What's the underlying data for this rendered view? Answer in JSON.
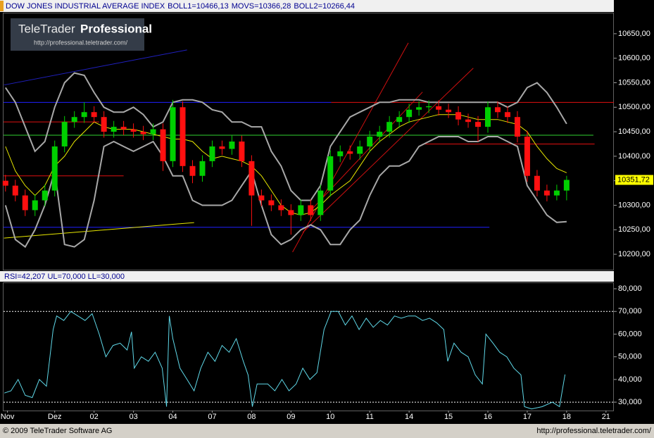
{
  "logo": {
    "brand": "TeleTrader",
    "product": "Professional",
    "url": "http://professional.teletrader.com/"
  },
  "footer": {
    "copyright": "© 2009 TeleTrader Software AG",
    "url": "http://professional.teletrader.com/"
  },
  "chart_data": [
    {
      "type": "candlestick",
      "title": "DOW JONES INDUSTRIAL AVERAGE INDEX",
      "indicator_labels": [
        "BOLL1=10466,13",
        "MOVS=10366,28",
        "BOLL2=10266,44"
      ],
      "last_price_label": "10351,72",
      "up_color": "#00d000",
      "down_color": "#ff1010",
      "xlim": [
        -0.3,
        15.2
      ],
      "ylim": [
        10168.5,
        10691.5
      ],
      "yticks": [
        {
          "value": 10200,
          "label": "10200,00"
        },
        {
          "value": 10250,
          "label": "10250,00"
        },
        {
          "value": 10300,
          "label": "10300,00"
        },
        {
          "value": 10350,
          "label": "10350,00"
        },
        {
          "value": 10400,
          "label": "10400,00"
        },
        {
          "value": 10450,
          "label": "10450,00"
        },
        {
          "value": 10500,
          "label": "10500,00"
        },
        {
          "value": 10550,
          "label": "10550,00"
        },
        {
          "value": 10600,
          "label": "10600,00"
        },
        {
          "value": 10650,
          "label": "10650,00"
        }
      ],
      "x": [
        -0.25,
        0,
        0.25,
        0.5,
        0.75,
        1,
        1.25,
        1.5,
        1.75,
        2,
        2.25,
        2.5,
        2.75,
        3,
        3.25,
        3.5,
        3.75,
        4,
        4.25,
        4.5,
        4.75,
        5,
        5.25,
        5.5,
        5.75,
        6,
        6.25,
        6.5,
        6.75,
        7,
        7.25,
        7.5,
        7.75,
        8,
        8.25,
        8.5,
        8.75,
        9,
        9.25,
        9.5,
        9.75,
        10,
        10.25,
        10.5,
        10.75,
        11,
        11.25,
        11.5,
        11.75,
        12,
        12.25,
        12.5,
        12.75,
        13,
        13.25,
        13.5,
        13.75,
        14
      ],
      "open": [
        10350,
        10340,
        10320,
        10290,
        10310,
        10330,
        10420,
        10470,
        10480,
        10490,
        10480,
        10450,
        10460,
        10455,
        10450,
        10445,
        10455,
        10390,
        10500,
        10380,
        10360,
        10390,
        10420,
        10415,
        10430,
        10390,
        10320,
        10310,
        10300,
        10290,
        10280,
        10300,
        10280,
        10330,
        10400,
        10410,
        10405,
        10420,
        10440,
        10450,
        10470,
        10480,
        10495,
        10500,
        10502,
        10495,
        10490,
        10475,
        10470,
        10460,
        10500,
        10490,
        10480,
        10440,
        10360,
        10330,
        10320,
        10330
      ],
      "high": [
        10362,
        10352,
        10332,
        10322,
        10342,
        10432,
        10482,
        10492,
        10510,
        10502,
        10492,
        10472,
        10472,
        10467,
        10462,
        10467,
        10467,
        10515,
        10512,
        10392,
        10402,
        10432,
        10432,
        10442,
        10442,
        10402,
        10332,
        10322,
        10312,
        10302,
        10312,
        10312,
        10342,
        10412,
        10422,
        10422,
        10432,
        10452,
        10462,
        10482,
        10492,
        10507,
        10512,
        10514,
        10514,
        10507,
        10502,
        10487,
        10482,
        10512,
        10512,
        10502,
        10492,
        10452,
        10372,
        10342,
        10342,
        10360
      ],
      "low": [
        10328,
        10308,
        10278,
        10278,
        10298,
        10318,
        10408,
        10458,
        10468,
        10468,
        10438,
        10438,
        10443,
        10438,
        10433,
        10433,
        10370,
        10378,
        10368,
        10345,
        10348,
        10378,
        10403,
        10403,
        10378,
        10258,
        10298,
        10288,
        10278,
        10240,
        10268,
        10268,
        10268,
        10318,
        10388,
        10393,
        10393,
        10408,
        10428,
        10438,
        10458,
        10468,
        10483,
        10488,
        10483,
        10478,
        10463,
        10458,
        10430,
        10448,
        10478,
        10468,
        10428,
        10348,
        10318,
        10308,
        10310,
        10310
      ],
      "close": [
        10340,
        10320,
        10290,
        10310,
        10330,
        10420,
        10470,
        10480,
        10490,
        10480,
        10450,
        10460,
        10455,
        10450,
        10445,
        10455,
        10390,
        10500,
        10380,
        10360,
        10390,
        10420,
        10415,
        10430,
        10390,
        10320,
        10310,
        10300,
        10290,
        10280,
        10300,
        10280,
        10330,
        10400,
        10410,
        10405,
        10420,
        10440,
        10450,
        10470,
        10480,
        10495,
        10500,
        10502,
        10495,
        10490,
        10475,
        10470,
        10460,
        10500,
        10490,
        10480,
        10440,
        10360,
        10330,
        10320,
        10330,
        10351.72
      ],
      "series": [
        {
          "color": "#a8a8a8",
          "values": [
            10540,
            10510,
            10460,
            10410,
            10430,
            10500,
            10550,
            10570,
            10565,
            10530,
            10500,
            10490,
            10490,
            10500,
            10485,
            10460,
            10470,
            10510,
            10515,
            10515,
            10510,
            10495,
            10490,
            10470,
            10470,
            10460,
            10460,
            10410,
            10380,
            10330,
            10310,
            10310,
            10340,
            10420,
            10450,
            10480,
            10490,
            10500,
            10510,
            10510,
            10515,
            10515,
            10515,
            10510,
            10510,
            10510,
            10510,
            10510,
            10510,
            10510,
            10510,
            10500,
            10510,
            10540,
            10550,
            10530,
            10500,
            10466.13
          ]
        },
        {
          "color": "#e8e800",
          "values": [
            10420,
            10370,
            10340,
            10320,
            10340,
            10380,
            10400,
            10430,
            10450,
            10470,
            10460,
            10455,
            10455,
            10455,
            10450,
            10445,
            10440,
            10435,
            10435,
            10430,
            10410,
            10395,
            10400,
            10395,
            10390,
            10380,
            10360,
            10330,
            10300,
            10285,
            10280,
            10285,
            10300,
            10320,
            10335,
            10350,
            10380,
            10410,
            10430,
            10445,
            10460,
            10470,
            10475,
            10480,
            10485,
            10485,
            10485,
            10480,
            10475,
            10475,
            10475,
            10470,
            10465,
            10450,
            10420,
            10395,
            10375,
            10366.28
          ]
        },
        {
          "color": "#a8a8a8",
          "values": [
            10300,
            10230,
            10215,
            10250,
            10300,
            10370,
            10220,
            10215,
            10230,
            10310,
            10420,
            10430,
            10420,
            10410,
            10420,
            10430,
            10400,
            10360,
            10360,
            10310,
            10300,
            10300,
            10300,
            10310,
            10340,
            10370,
            10300,
            10240,
            10220,
            10230,
            10250,
            10260,
            10250,
            10220,
            10220,
            10250,
            10270,
            10320,
            10360,
            10380,
            10380,
            10390,
            10420,
            10430,
            10440,
            10440,
            10440,
            10430,
            10430,
            10440,
            10440,
            10430,
            10420,
            10340,
            10310,
            10280,
            10265,
            10266.44
          ]
        }
      ],
      "levels": [
        {
          "value": 10510,
          "from": -0.3,
          "to": 8.02,
          "color": "#2020ff"
        },
        {
          "value": 10510,
          "from": 8.02,
          "to": 15.2,
          "color": "#e01010"
        },
        {
          "value": 10470,
          "from": -0.3,
          "to": 2.13,
          "color": "#e01010"
        },
        {
          "value": 10443,
          "from": -0.3,
          "to": 14.68,
          "color": "#30d030"
        },
        {
          "value": 10425,
          "from": 10.34,
          "to": 14.71,
          "color": "#e01010"
        },
        {
          "value": 10360,
          "from": -0.3,
          "to": 2.75,
          "color": "#e01010"
        },
        {
          "value": 10255,
          "from": -0.3,
          "to": 12.04,
          "color": "#2020ff"
        }
      ],
      "trendlines": [
        {
          "x": [
            -0.29,
            4.36
          ],
          "y": [
            10545.4,
            10617
          ],
          "color": "#2020c0"
        },
        {
          "x": [
            -0.29,
            4.54
          ],
          "y": [
            10233,
            10264.6
          ],
          "color": "#e8e800"
        },
        {
          "x": [
            7.04,
            9.98
          ],
          "y": [
            10204.4,
            10631.4
          ],
          "color": "#d01010"
        },
        {
          "x": [
            7.3,
            11.63
          ],
          "y": [
            10244.6,
            10579.8
          ],
          "color": "#d01010"
        },
        {
          "x": [
            7.48,
            10.34
          ],
          "y": [
            10287.5,
            10531
          ],
          "color": "#d01010"
        }
      ]
    },
    {
      "type": "line",
      "title": "RSI=42,207 UL=70,000 LL=30,000",
      "color": "#5fd8e8",
      "xlim": [
        -0.3,
        15.2
      ],
      "ylim": [
        26.3,
        82.5
      ],
      "yticks": [
        {
          "value": 30,
          "label": "30,000"
        },
        {
          "value": 40,
          "label": "40,000"
        },
        {
          "value": 50,
          "label": "50,000"
        },
        {
          "value": 60,
          "label": "60,000"
        },
        {
          "value": 70,
          "label": "70,000"
        },
        {
          "value": 80,
          "label": "80,000"
        }
      ],
      "xticks": [
        {
          "value": -0.2,
          "label": "Nov"
        },
        {
          "value": 1,
          "label": "Dez"
        },
        {
          "value": 2,
          "label": "02"
        },
        {
          "value": 3,
          "label": "03"
        },
        {
          "value": 4,
          "label": "04"
        },
        {
          "value": 5,
          "label": "07"
        },
        {
          "value": 6,
          "label": "08"
        },
        {
          "value": 7,
          "label": "09"
        },
        {
          "value": 8,
          "label": "10"
        },
        {
          "value": 9,
          "label": "11"
        },
        {
          "value": 10,
          "label": "14"
        },
        {
          "value": 11,
          "label": "15"
        },
        {
          "value": 12,
          "label": "16"
        },
        {
          "value": 13,
          "label": "17"
        },
        {
          "value": 14,
          "label": "18"
        },
        {
          "value": 15,
          "label": "21"
        }
      ],
      "upper_limit": 70,
      "lower_limit": 30,
      "x": [
        -0.28,
        -0.11,
        0.07,
        0.25,
        0.43,
        0.61,
        0.79,
        0.96,
        1.05,
        1.23,
        1.41,
        1.59,
        1.77,
        1.95,
        2.13,
        2.3,
        2.48,
        2.66,
        2.84,
        2.95,
        3.02,
        3.2,
        3.38,
        3.55,
        3.73,
        3.84,
        3.91,
        4,
        4.18,
        4.36,
        4.54,
        4.71,
        4.89,
        5.07,
        5.25,
        5.43,
        5.61,
        5.79,
        5.91,
        6.02,
        6.14,
        6.41,
        6.59,
        6.77,
        6.95,
        7.13,
        7.3,
        7.48,
        7.66,
        7.84,
        8.02,
        8.2,
        8.38,
        8.55,
        8.73,
        8.91,
        9.09,
        9.27,
        9.45,
        9.63,
        9.8,
        9.98,
        10.16,
        10.34,
        10.52,
        10.7,
        10.88,
        10.98,
        11.14,
        11.32,
        11.5,
        11.68,
        11.86,
        11.95,
        12.13,
        12.3,
        12.48,
        12.66,
        12.84,
        12.93,
        13.11,
        13.38,
        13.64,
        13.82,
        13.96
      ],
      "values": [
        34,
        35,
        40,
        33,
        32,
        40,
        37,
        62,
        68,
        66,
        70,
        68,
        66,
        69,
        60,
        50,
        55,
        56,
        53,
        61,
        45,
        50,
        48,
        52,
        45,
        28,
        68,
        58,
        45,
        40,
        35,
        45,
        52,
        48,
        55,
        52,
        58,
        48,
        42,
        28,
        38,
        38,
        35,
        40,
        35,
        38,
        45,
        40,
        43,
        62,
        70,
        70,
        64,
        68,
        62,
        67,
        63,
        66,
        64,
        68,
        67,
        68,
        68,
        66,
        67,
        65,
        62,
        48,
        56,
        52,
        50,
        42,
        38,
        60,
        56,
        52,
        50,
        45,
        42,
        28,
        27,
        28,
        30,
        28,
        42.207
      ]
    }
  ]
}
